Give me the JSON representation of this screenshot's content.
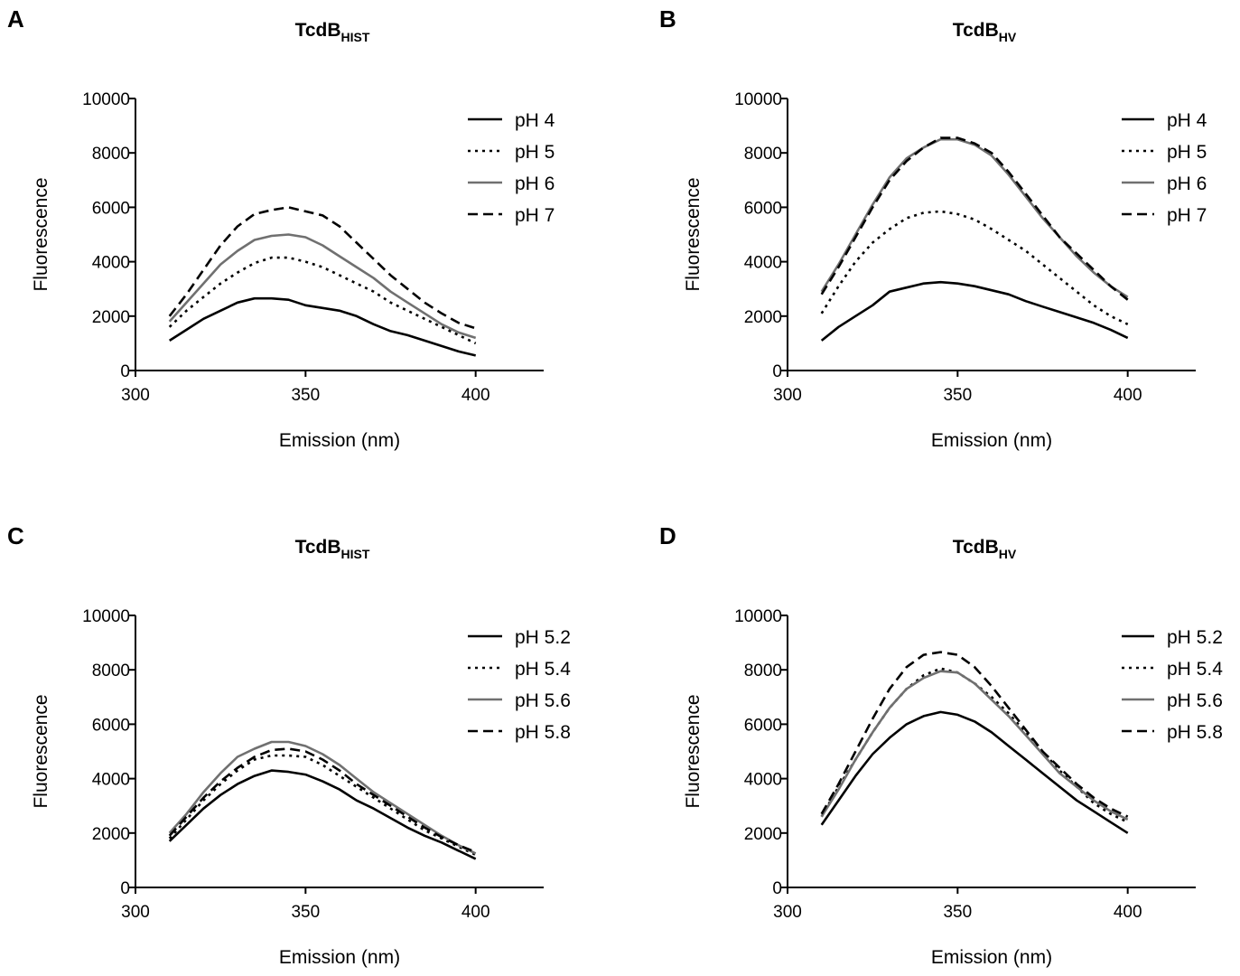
{
  "figure": {
    "panels": [
      "A",
      "B",
      "C",
      "D"
    ]
  },
  "colors": {
    "black": "#000000",
    "gray": "#707070"
  },
  "chart_data": [
    {
      "panel": "A",
      "type": "line",
      "title": "TcdB",
      "title_sub": "HIST",
      "xlabel": "Emission (nm)",
      "ylabel": "Fluorescence",
      "xlim": [
        300,
        420
      ],
      "ylim": [
        0,
        10000
      ],
      "xticks": [
        300,
        350,
        400
      ],
      "yticks": [
        0,
        2000,
        4000,
        6000,
        8000,
        10000
      ],
      "legend_position": "top-right",
      "series": [
        {
          "name": "pH 4",
          "style": "solid",
          "color": "#000000",
          "x": [
            310,
            315,
            320,
            325,
            330,
            335,
            340,
            345,
            350,
            355,
            360,
            365,
            370,
            375,
            380,
            385,
            390,
            395,
            400
          ],
          "values": [
            1100,
            1500,
            1900,
            2200,
            2500,
            2650,
            2650,
            2600,
            2400,
            2300,
            2200,
            2000,
            1700,
            1450,
            1300,
            1100,
            900,
            700,
            550
          ]
        },
        {
          "name": "pH 5",
          "style": "dotted",
          "color": "#000000",
          "x": [
            310,
            315,
            320,
            325,
            330,
            335,
            340,
            345,
            350,
            355,
            360,
            365,
            370,
            375,
            380,
            385,
            390,
            395,
            400
          ],
          "values": [
            1600,
            2200,
            2700,
            3200,
            3600,
            3950,
            4150,
            4150,
            4000,
            3800,
            3500,
            3200,
            2900,
            2500,
            2200,
            1900,
            1600,
            1300,
            1000
          ]
        },
        {
          "name": "pH 6",
          "style": "solid",
          "color": "#707070",
          "x": [
            310,
            315,
            320,
            325,
            330,
            335,
            340,
            345,
            350,
            355,
            360,
            365,
            370,
            375,
            380,
            385,
            390,
            395,
            400
          ],
          "values": [
            1800,
            2500,
            3200,
            3900,
            4400,
            4800,
            4950,
            5000,
            4900,
            4600,
            4200,
            3800,
            3400,
            2900,
            2500,
            2100,
            1700,
            1400,
            1200
          ]
        },
        {
          "name": "pH 7",
          "style": "dashed",
          "color": "#000000",
          "x": [
            310,
            315,
            320,
            325,
            330,
            335,
            340,
            345,
            350,
            355,
            360,
            365,
            370,
            375,
            380,
            385,
            390,
            395,
            400
          ],
          "values": [
            2000,
            2800,
            3700,
            4600,
            5300,
            5750,
            5900,
            6000,
            5850,
            5700,
            5300,
            4700,
            4100,
            3500,
            3000,
            2500,
            2100,
            1750,
            1550
          ]
        }
      ]
    },
    {
      "panel": "B",
      "type": "line",
      "title": "TcdB",
      "title_sub": "HV",
      "xlabel": "Emission (nm)",
      "ylabel": "Fluorescence",
      "xlim": [
        300,
        420
      ],
      "ylim": [
        0,
        10000
      ],
      "xticks": [
        300,
        350,
        400
      ],
      "yticks": [
        0,
        2000,
        4000,
        6000,
        8000,
        10000
      ],
      "legend_position": "top-right",
      "series": [
        {
          "name": "pH 4",
          "style": "solid",
          "color": "#000000",
          "x": [
            310,
            315,
            320,
            325,
            330,
            335,
            340,
            345,
            350,
            355,
            360,
            365,
            370,
            375,
            380,
            385,
            390,
            395,
            400
          ],
          "values": [
            1100,
            1600,
            2000,
            2400,
            2900,
            3050,
            3200,
            3250,
            3200,
            3100,
            2950,
            2800,
            2550,
            2350,
            2150,
            1950,
            1750,
            1500,
            1200
          ]
        },
        {
          "name": "pH 5",
          "style": "dotted",
          "color": "#000000",
          "x": [
            310,
            315,
            320,
            325,
            330,
            335,
            340,
            345,
            350,
            355,
            360,
            365,
            370,
            375,
            380,
            385,
            390,
            395,
            400
          ],
          "values": [
            2100,
            3100,
            4000,
            4700,
            5200,
            5600,
            5800,
            5850,
            5750,
            5550,
            5200,
            4800,
            4400,
            3900,
            3400,
            2900,
            2400,
            2000,
            1700
          ]
        },
        {
          "name": "pH 6",
          "style": "solid",
          "color": "#707070",
          "x": [
            310,
            315,
            320,
            325,
            330,
            335,
            340,
            345,
            350,
            355,
            360,
            365,
            370,
            375,
            380,
            385,
            390,
            395,
            400
          ],
          "values": [
            2900,
            3900,
            5000,
            6100,
            7100,
            7800,
            8200,
            8500,
            8500,
            8300,
            7900,
            7200,
            6400,
            5600,
            4900,
            4200,
            3600,
            3100,
            2700
          ]
        },
        {
          "name": "pH 7",
          "style": "dashed",
          "color": "#000000",
          "x": [
            310,
            315,
            320,
            325,
            330,
            335,
            340,
            345,
            350,
            355,
            360,
            365,
            370,
            375,
            380,
            385,
            390,
            395,
            400
          ],
          "values": [
            2800,
            3800,
            4900,
            6000,
            7000,
            7700,
            8200,
            8550,
            8550,
            8350,
            8000,
            7300,
            6500,
            5700,
            4900,
            4300,
            3700,
            3100,
            2600
          ]
        }
      ]
    },
    {
      "panel": "C",
      "type": "line",
      "title": "TcdB",
      "title_sub": "HIST",
      "xlabel": "Emission (nm)",
      "ylabel": "Fluorescence",
      "xlim": [
        300,
        420
      ],
      "ylim": [
        0,
        10000
      ],
      "xticks": [
        300,
        350,
        400
      ],
      "yticks": [
        0,
        2000,
        4000,
        6000,
        8000,
        10000
      ],
      "legend_position": "top-right",
      "series": [
        {
          "name": "pH 5.2",
          "style": "solid",
          "color": "#000000",
          "x": [
            310,
            315,
            320,
            325,
            330,
            335,
            340,
            345,
            350,
            355,
            360,
            365,
            370,
            375,
            380,
            385,
            390,
            395,
            400
          ],
          "values": [
            1700,
            2300,
            2900,
            3400,
            3800,
            4100,
            4300,
            4250,
            4150,
            3900,
            3600,
            3200,
            2900,
            2550,
            2200,
            1900,
            1650,
            1350,
            1050
          ]
        },
        {
          "name": "pH 5.4",
          "style": "dotted",
          "color": "#000000",
          "x": [
            310,
            315,
            320,
            325,
            330,
            335,
            340,
            345,
            350,
            355,
            360,
            365,
            370,
            375,
            380,
            385,
            390,
            395,
            400
          ],
          "values": [
            1800,
            2500,
            3200,
            3800,
            4300,
            4700,
            4850,
            4850,
            4800,
            4500,
            4100,
            3700,
            3300,
            2900,
            2500,
            2100,
            1800,
            1500,
            1200
          ]
        },
        {
          "name": "pH 5.6",
          "style": "solid",
          "color": "#707070",
          "x": [
            310,
            315,
            320,
            325,
            330,
            335,
            340,
            345,
            350,
            355,
            360,
            365,
            370,
            375,
            380,
            385,
            390,
            395,
            400
          ],
          "values": [
            2000,
            2700,
            3500,
            4200,
            4800,
            5100,
            5350,
            5350,
            5200,
            4900,
            4500,
            4000,
            3500,
            3100,
            2700,
            2300,
            1900,
            1550,
            1250
          ]
        },
        {
          "name": "pH 5.8",
          "style": "dashed",
          "color": "#000000",
          "x": [
            310,
            315,
            320,
            325,
            330,
            335,
            340,
            345,
            350,
            355,
            360,
            365,
            370,
            375,
            380,
            385,
            390,
            395,
            400
          ],
          "values": [
            1900,
            2600,
            3300,
            3900,
            4400,
            4800,
            5050,
            5100,
            5000,
            4700,
            4300,
            3800,
            3400,
            3000,
            2600,
            2200,
            1850,
            1550,
            1300
          ]
        }
      ]
    },
    {
      "panel": "D",
      "type": "line",
      "title": "TcdB",
      "title_sub": "HV",
      "xlabel": "Emission (nm)",
      "ylabel": "Fluorescence",
      "xlim": [
        300,
        420
      ],
      "ylim": [
        0,
        10000
      ],
      "xticks": [
        300,
        350,
        400
      ],
      "yticks": [
        0,
        2000,
        4000,
        6000,
        8000,
        10000
      ],
      "legend_position": "top-right",
      "series": [
        {
          "name": "pH 5.2",
          "style": "solid",
          "color": "#000000",
          "x": [
            310,
            315,
            320,
            325,
            330,
            335,
            340,
            345,
            350,
            355,
            360,
            365,
            370,
            375,
            380,
            385,
            390,
            395,
            400
          ],
          "values": [
            2300,
            3200,
            4100,
            4900,
            5500,
            6000,
            6300,
            6450,
            6350,
            6100,
            5700,
            5200,
            4700,
            4200,
            3700,
            3200,
            2800,
            2400,
            2000
          ]
        },
        {
          "name": "pH 5.4",
          "style": "dotted",
          "color": "#000000",
          "x": [
            310,
            315,
            320,
            325,
            330,
            335,
            340,
            345,
            350,
            355,
            360,
            365,
            370,
            375,
            380,
            385,
            390,
            395,
            400
          ],
          "values": [
            2600,
            3700,
            4700,
            5700,
            6600,
            7300,
            7800,
            8050,
            7900,
            7500,
            7000,
            6400,
            5700,
            5000,
            4300,
            3700,
            3100,
            2700,
            2400
          ]
        },
        {
          "name": "pH 5.6",
          "style": "solid",
          "color": "#707070",
          "x": [
            310,
            315,
            320,
            325,
            330,
            335,
            340,
            345,
            350,
            355,
            360,
            365,
            370,
            375,
            380,
            385,
            390,
            395,
            400
          ],
          "values": [
            2600,
            3600,
            4700,
            5700,
            6600,
            7300,
            7700,
            7950,
            7900,
            7500,
            6900,
            6300,
            5600,
            4900,
            4200,
            3700,
            3200,
            2800,
            2500
          ]
        },
        {
          "name": "pH 5.8",
          "style": "dashed",
          "color": "#000000",
          "x": [
            310,
            315,
            320,
            325,
            330,
            335,
            340,
            345,
            350,
            355,
            360,
            365,
            370,
            375,
            380,
            385,
            390,
            395,
            400
          ],
          "values": [
            2700,
            3800,
            5000,
            6200,
            7300,
            8100,
            8550,
            8650,
            8550,
            8100,
            7400,
            6600,
            5800,
            5000,
            4400,
            3800,
            3300,
            2900,
            2600
          ]
        }
      ]
    }
  ]
}
